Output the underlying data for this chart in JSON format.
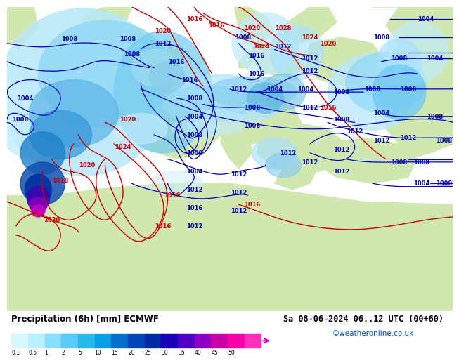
{
  "title_left": "Precipitation (6h) [mm] ECMWF",
  "title_right": "Sa 08-06-2024 06..12 UTC (00+60)",
  "credit": "©weatheronline.co.uk",
  "colorbar_values": [
    "0.1",
    "0.5",
    "1",
    "2",
    "5",
    "10",
    "15",
    "20",
    "25",
    "30",
    "35",
    "40",
    "45",
    "50"
  ],
  "colorbar_colors": [
    "#d8f8ff",
    "#b8f0ff",
    "#88e0ff",
    "#58ccf4",
    "#28b8ec",
    "#08a0e4",
    "#0070cc",
    "#0048b8",
    "#0028a0",
    "#1800b8",
    "#5000c0",
    "#9000c0",
    "#c800a8",
    "#f800a8",
    "#ff30b8"
  ],
  "ocean_color": "#e8f0f8",
  "land_color": "#d0e8b0",
  "precip_light": "#b0e8ff",
  "precip_mid": "#70ccf0",
  "precip_dark": "#3090d8",
  "precip_heavy": "#1050b8",
  "precip_intense": "#0030a0",
  "precip_purple": "#8000b8",
  "precip_magenta": "#c800b0",
  "blue_line": "#0000bb",
  "red_line": "#cc0000",
  "bg_color": "#ffffff",
  "title_fontsize": 8.5,
  "credit_color": "#0055bb",
  "label_fontsize": 6.0
}
